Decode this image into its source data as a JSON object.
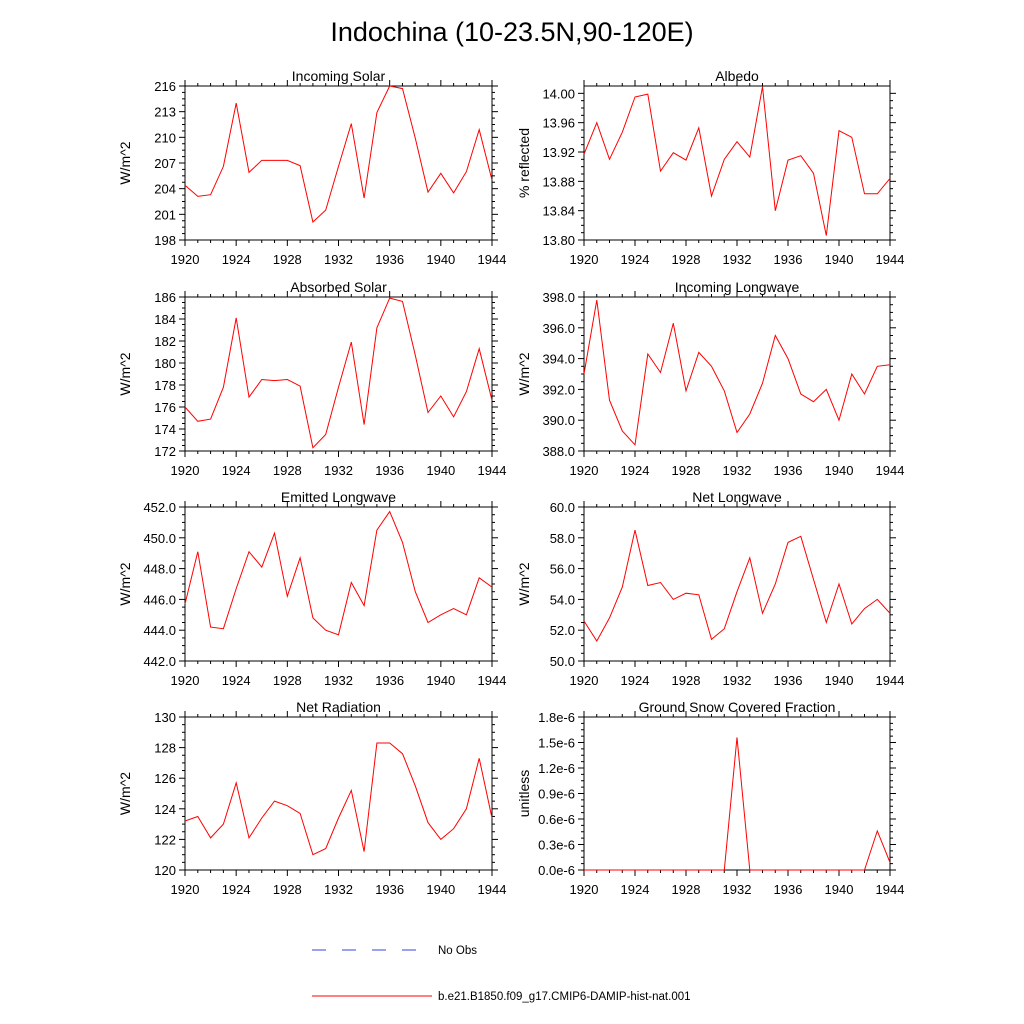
{
  "figure": {
    "title": "Indochina (10-23.5N,90-120E)"
  },
  "legend": {
    "items": [
      {
        "label": "No Obs",
        "color": "#3344dd",
        "style": "dashed"
      },
      {
        "label": "b.e21.B1850.f09_g17.CMIP6-DAMIP-hist-nat.001",
        "color": "#ff0000",
        "style": "solid"
      }
    ]
  },
  "chart_data": [
    {
      "type": "line",
      "title": "Incoming Solar",
      "ylabel": "W/m^2",
      "xlim": [
        1920,
        1944
      ],
      "ylim": [
        198,
        216
      ],
      "yticks": [
        198,
        201,
        204,
        207,
        210,
        213,
        216
      ],
      "ytick_labels": [
        "198",
        "201",
        "204",
        "207",
        "210",
        "213",
        "216"
      ],
      "xticks": [
        1920,
        1924,
        1928,
        1932,
        1936,
        1940,
        1944
      ],
      "xtick_labels": [
        "1920",
        "1924",
        "1928",
        "1932",
        "1936",
        "1940",
        "1944"
      ],
      "x": [
        1920,
        1921,
        1922,
        1923,
        1924,
        1925,
        1926,
        1927,
        1928,
        1929,
        1930,
        1931,
        1932,
        1933,
        1934,
        1935,
        1936,
        1937,
        1938,
        1939,
        1940,
        1941,
        1942,
        1943,
        1944
      ],
      "series": [
        {
          "color": "#ff0000",
          "values": [
            204.4,
            203.1,
            203.3,
            206.6,
            214.0,
            205.9,
            207.3,
            207.3,
            207.3,
            206.7,
            200.1,
            201.5,
            206.6,
            211.6,
            202.9,
            212.9,
            216.0,
            215.7,
            209.9,
            203.6,
            205.8,
            203.5,
            206.0,
            210.9,
            205.0
          ]
        }
      ]
    },
    {
      "type": "line",
      "title": "Albedo",
      "ylabel": "% reflected",
      "xlim": [
        1920,
        1944
      ],
      "ylim": [
        13.8,
        14.01
      ],
      "yticks": [
        13.8,
        13.84,
        13.88,
        13.92,
        13.96,
        14.0
      ],
      "ytick_labels": [
        "13.80",
        "13.84",
        "13.88",
        "13.92",
        "13.96",
        "14.00"
      ],
      "xticks": [
        1920,
        1924,
        1928,
        1932,
        1936,
        1940,
        1944
      ],
      "xtick_labels": [
        "1920",
        "1924",
        "1928",
        "1932",
        "1936",
        "1940",
        "1944"
      ],
      "x": [
        1920,
        1921,
        1922,
        1923,
        1924,
        1925,
        1926,
        1927,
        1928,
        1929,
        1930,
        1931,
        1932,
        1933,
        1934,
        1935,
        1936,
        1937,
        1938,
        1939,
        1940,
        1941,
        1942,
        1943,
        1944
      ],
      "series": [
        {
          "color": "#ff0000",
          "values": [
            13.917,
            13.96,
            13.91,
            13.947,
            13.995,
            13.999,
            13.894,
            13.919,
            13.909,
            13.953,
            13.86,
            13.91,
            13.934,
            13.913,
            14.009,
            13.84,
            13.909,
            13.915,
            13.891,
            13.806,
            13.949,
            13.94,
            13.863,
            13.863,
            13.884
          ]
        }
      ]
    },
    {
      "type": "line",
      "title": "Absorbed Solar",
      "ylabel": "W/m^2",
      "xlim": [
        1920,
        1944
      ],
      "ylim": [
        172,
        186
      ],
      "yticks": [
        172,
        174,
        176,
        178,
        180,
        182,
        184,
        186
      ],
      "ytick_labels": [
        "172",
        "174",
        "176",
        "178",
        "180",
        "182",
        "184",
        "186"
      ],
      "xticks": [
        1920,
        1924,
        1928,
        1932,
        1936,
        1940,
        1944
      ],
      "xtick_labels": [
        "1920",
        "1924",
        "1928",
        "1932",
        "1936",
        "1940",
        "1944"
      ],
      "x": [
        1920,
        1921,
        1922,
        1923,
        1924,
        1925,
        1926,
        1927,
        1928,
        1929,
        1930,
        1931,
        1932,
        1933,
        1934,
        1935,
        1936,
        1937,
        1938,
        1939,
        1940,
        1941,
        1942,
        1943,
        1944
      ],
      "series": [
        {
          "color": "#ff0000",
          "values": [
            176.0,
            174.7,
            174.9,
            177.8,
            184.1,
            176.9,
            178.5,
            178.4,
            178.5,
            177.9,
            172.3,
            173.5,
            177.8,
            181.9,
            174.4,
            183.2,
            185.9,
            185.6,
            180.7,
            175.5,
            177.0,
            175.1,
            177.4,
            181.3,
            176.6
          ]
        }
      ]
    },
    {
      "type": "line",
      "title": "Incoming Longwave",
      "ylabel": "W/m^2",
      "xlim": [
        1920,
        1944
      ],
      "ylim": [
        388.0,
        398.0
      ],
      "yticks": [
        388.0,
        390.0,
        392.0,
        394.0,
        396.0,
        398.0
      ],
      "ytick_labels": [
        "388.0",
        "390.0",
        "392.0",
        "394.0",
        "396.0",
        "398.0"
      ],
      "xticks": [
        1920,
        1924,
        1928,
        1932,
        1936,
        1940,
        1944
      ],
      "xtick_labels": [
        "1920",
        "1924",
        "1928",
        "1932",
        "1936",
        "1940",
        "1944"
      ],
      "x": [
        1920,
        1921,
        1922,
        1923,
        1924,
        1925,
        1926,
        1927,
        1928,
        1929,
        1930,
        1931,
        1932,
        1933,
        1934,
        1935,
        1936,
        1937,
        1938,
        1939,
        1940,
        1941,
        1942,
        1943,
        1944
      ],
      "series": [
        {
          "color": "#ff0000",
          "values": [
            393.0,
            397.8,
            391.3,
            389.3,
            388.4,
            394.3,
            393.1,
            396.3,
            391.9,
            394.4,
            393.5,
            391.9,
            389.2,
            390.4,
            392.4,
            395.5,
            394.0,
            391.7,
            391.2,
            392.0,
            390.0,
            393.0,
            391.7,
            393.5,
            393.6
          ]
        }
      ]
    },
    {
      "type": "line",
      "title": "Emitted Longwave",
      "ylabel": "W/m^2",
      "xlim": [
        1920,
        1944
      ],
      "ylim": [
        442.0,
        452.0
      ],
      "yticks": [
        442.0,
        444.0,
        446.0,
        448.0,
        450.0,
        452.0
      ],
      "ytick_labels": [
        "442.0",
        "444.0",
        "446.0",
        "448.0",
        "450.0",
        "452.0"
      ],
      "xticks": [
        1920,
        1924,
        1928,
        1932,
        1936,
        1940,
        1944
      ],
      "xtick_labels": [
        "1920",
        "1924",
        "1928",
        "1932",
        "1936",
        "1940",
        "1944"
      ],
      "x": [
        1920,
        1921,
        1922,
        1923,
        1924,
        1925,
        1926,
        1927,
        1928,
        1929,
        1930,
        1931,
        1932,
        1933,
        1934,
        1935,
        1936,
        1937,
        1938,
        1939,
        1940,
        1941,
        1942,
        1943,
        1944
      ],
      "series": [
        {
          "color": "#ff0000",
          "values": [
            445.7,
            449.1,
            444.2,
            444.1,
            446.7,
            449.1,
            448.1,
            450.3,
            446.2,
            448.7,
            444.8,
            444.0,
            443.7,
            447.1,
            445.6,
            450.5,
            451.7,
            449.7,
            446.5,
            444.5,
            445.0,
            445.4,
            445.0,
            447.4,
            446.8
          ]
        }
      ]
    },
    {
      "type": "line",
      "title": "Net Longwave",
      "ylabel": "W/m^2",
      "xlim": [
        1920,
        1944
      ],
      "ylim": [
        50.0,
        60.0
      ],
      "yticks": [
        50.0,
        52.0,
        54.0,
        56.0,
        58.0,
        60.0
      ],
      "ytick_labels": [
        "50.0",
        "52.0",
        "54.0",
        "56.0",
        "58.0",
        "60.0"
      ],
      "xticks": [
        1920,
        1924,
        1928,
        1932,
        1936,
        1940,
        1944
      ],
      "xtick_labels": [
        "1920",
        "1924",
        "1928",
        "1932",
        "1936",
        "1940",
        "1944"
      ],
      "x": [
        1920,
        1921,
        1922,
        1923,
        1924,
        1925,
        1926,
        1927,
        1928,
        1929,
        1930,
        1931,
        1932,
        1933,
        1934,
        1935,
        1936,
        1937,
        1938,
        1939,
        1940,
        1941,
        1942,
        1943,
        1944
      ],
      "series": [
        {
          "color": "#ff0000",
          "values": [
            52.6,
            51.3,
            52.8,
            54.8,
            58.5,
            54.9,
            55.1,
            54.0,
            54.4,
            54.3,
            51.4,
            52.1,
            54.5,
            56.7,
            53.1,
            55.0,
            57.7,
            58.1,
            55.3,
            52.5,
            55.0,
            52.4,
            53.4,
            54.0,
            53.1
          ]
        }
      ]
    },
    {
      "type": "line",
      "title": "Net Radiation",
      "ylabel": "W/m^2",
      "xlim": [
        1920,
        1944
      ],
      "ylim": [
        120,
        130
      ],
      "yticks": [
        120,
        122,
        124,
        126,
        128,
        130
      ],
      "ytick_labels": [
        "120",
        "122",
        "124",
        "126",
        "128",
        "130"
      ],
      "xticks": [
        1920,
        1924,
        1928,
        1932,
        1936,
        1940,
        1944
      ],
      "xtick_labels": [
        "1920",
        "1924",
        "1928",
        "1932",
        "1936",
        "1940",
        "1944"
      ],
      "x": [
        1920,
        1921,
        1922,
        1923,
        1924,
        1925,
        1926,
        1927,
        1928,
        1929,
        1930,
        1931,
        1932,
        1933,
        1934,
        1935,
        1936,
        1937,
        1938,
        1939,
        1940,
        1941,
        1942,
        1943,
        1944
      ],
      "series": [
        {
          "color": "#ff0000",
          "values": [
            123.2,
            123.5,
            122.1,
            123.0,
            125.7,
            122.1,
            123.4,
            124.5,
            124.2,
            123.7,
            121.0,
            121.4,
            123.4,
            125.2,
            121.2,
            128.3,
            128.3,
            127.6,
            125.5,
            123.1,
            122.0,
            122.7,
            124.0,
            127.3,
            123.4
          ]
        }
      ]
    },
    {
      "type": "line",
      "title": "Ground Snow Covered Fraction",
      "ylabel": "unitless",
      "xlim": [
        1920,
        1944
      ],
      "ylim": [
        0,
        1.8e-06
      ],
      "yticks": [
        0,
        3e-07,
        6e-07,
        9e-07,
        1.2e-06,
        1.5e-06,
        1.8e-06
      ],
      "ytick_labels": [
        "0.0e-6",
        "0.3e-6",
        "0.6e-6",
        "0.9e-6",
        "1.2e-6",
        "1.5e-6",
        "1.8e-6"
      ],
      "xticks": [
        1920,
        1924,
        1928,
        1932,
        1936,
        1940,
        1944
      ],
      "xtick_labels": [
        "1920",
        "1924",
        "1928",
        "1932",
        "1936",
        "1940",
        "1944"
      ],
      "x": [
        1920,
        1921,
        1922,
        1923,
        1924,
        1925,
        1926,
        1927,
        1928,
        1929,
        1930,
        1931,
        1932,
        1933,
        1934,
        1935,
        1936,
        1937,
        1938,
        1939,
        1940,
        1941,
        1942,
        1943,
        1944
      ],
      "series": [
        {
          "color": "#ff0000",
          "values": [
            0,
            0,
            0,
            0,
            0,
            0,
            0,
            0,
            0,
            0,
            0,
            0,
            1.56e-06,
            0,
            0,
            0,
            0,
            0,
            0,
            0,
            0,
            0,
            0,
            4.6e-07,
            9e-08
          ]
        }
      ]
    }
  ]
}
